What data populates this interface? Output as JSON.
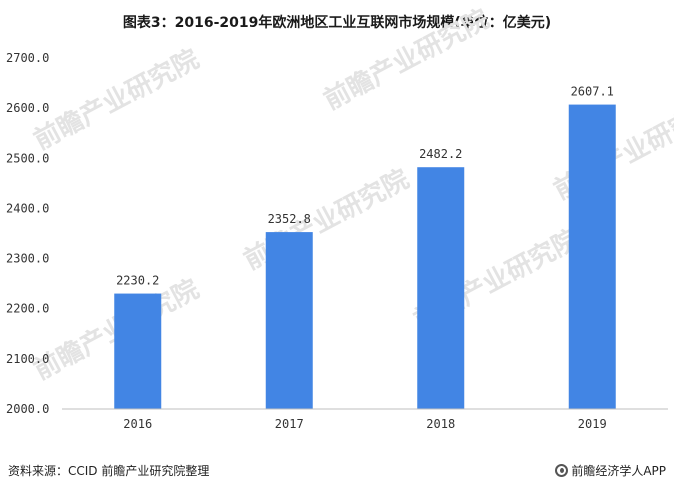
{
  "title": "图表3：2016-2019年欧洲地区工业互联网市场规模(单位：亿美元)",
  "watermark": "前瞻产业研究院",
  "footer": {
    "source": "资料来源：CCID 前瞻产业研究院整理",
    "app": "前瞻经济学人APP"
  },
  "colors": {
    "bar": "#4285e4",
    "axis": "#bfbfbf"
  },
  "chart_data": {
    "type": "bar",
    "title": "图表3：2016-2019年欧洲地区工业互联网市场规模(单位：亿美元)",
    "categories": [
      "2016",
      "2017",
      "2018",
      "2019"
    ],
    "values": [
      2230.2,
      2352.8,
      2482.2,
      2607.1
    ],
    "value_labels": [
      "2230.2",
      "2352.8",
      "2482.2",
      "2607.1"
    ],
    "ylim": [
      2000,
      2700
    ],
    "yticks": [
      2000,
      2100,
      2200,
      2300,
      2400,
      2500,
      2600,
      2700
    ],
    "ytick_labels": [
      "2000.0",
      "2100.0",
      "2200.0",
      "2300.0",
      "2400.0",
      "2500.0",
      "2600.0",
      "2700.0"
    ],
    "xlabel": "",
    "ylabel": "",
    "grid": false,
    "legend": "none"
  }
}
